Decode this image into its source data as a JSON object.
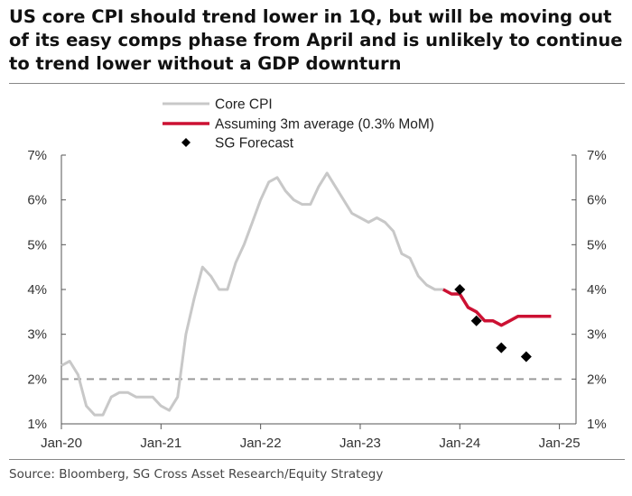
{
  "title_lines": [
    "US core CPI should trend lower in 1Q, but will be moving out",
    "of its easy comps phase from April and is unlikely to continue",
    "to trend lower without a GDP downturn"
  ],
  "source": "Source: Bloomberg, SG Cross Asset Research/Equity Strategy",
  "colors": {
    "core_cpi": "#c8c8c8",
    "assuming": "#cc1133",
    "forecast": "#000000",
    "reference_line": "#9a9a9a",
    "axis": "#555555"
  },
  "chart_data": {
    "type": "line",
    "title": "",
    "xlabel": "",
    "ylabel": "",
    "xlim": [
      "2020-01",
      "2025-03"
    ],
    "ylim": [
      1,
      7
    ],
    "x_ticks": [
      "Jan-20",
      "Jan-21",
      "Jan-22",
      "Jan-23",
      "Jan-24",
      "Jan-25"
    ],
    "y_ticks_left": [
      "1%",
      "2%",
      "3%",
      "4%",
      "5%",
      "6%",
      "7%"
    ],
    "y_ticks_right": [
      "1%",
      "2%",
      "3%",
      "4%",
      "5%",
      "6%",
      "7%"
    ],
    "grid": false,
    "legend_position": "top-left",
    "reference_line": {
      "y": 2,
      "style": "dashed"
    },
    "series": [
      {
        "name": "Core CPI",
        "kind": "line",
        "x": [
          "2020-01",
          "2020-02",
          "2020-03",
          "2020-04",
          "2020-05",
          "2020-06",
          "2020-07",
          "2020-08",
          "2020-09",
          "2020-10",
          "2020-11",
          "2020-12",
          "2021-01",
          "2021-02",
          "2021-03",
          "2021-04",
          "2021-05",
          "2021-06",
          "2021-07",
          "2021-08",
          "2021-09",
          "2021-10",
          "2021-11",
          "2021-12",
          "2022-01",
          "2022-02",
          "2022-03",
          "2022-04",
          "2022-05",
          "2022-06",
          "2022-07",
          "2022-08",
          "2022-09",
          "2022-10",
          "2022-11",
          "2022-12",
          "2023-01",
          "2023-02",
          "2023-03",
          "2023-04",
          "2023-05",
          "2023-06",
          "2023-07",
          "2023-08",
          "2023-09",
          "2023-10",
          "2023-11",
          "2023-12"
        ],
        "values": [
          2.3,
          2.4,
          2.1,
          1.4,
          1.2,
          1.2,
          1.6,
          1.7,
          1.7,
          1.6,
          1.6,
          1.6,
          1.4,
          1.3,
          1.6,
          3.0,
          3.8,
          4.5,
          4.3,
          4.0,
          4.0,
          4.6,
          5.0,
          5.5,
          6.0,
          6.4,
          6.5,
          6.2,
          6.0,
          5.9,
          5.9,
          6.3,
          6.6,
          6.3,
          6.0,
          5.7,
          5.6,
          5.5,
          5.6,
          5.5,
          5.3,
          4.8,
          4.7,
          4.3,
          4.1,
          4.0,
          4.0,
          3.9
        ]
      },
      {
        "name": "Assuming 3m average (0.3% MoM)",
        "kind": "line",
        "x": [
          "2023-11",
          "2023-12",
          "2024-01",
          "2024-02",
          "2024-03",
          "2024-04",
          "2024-05",
          "2024-06",
          "2024-07",
          "2024-08",
          "2024-09",
          "2024-10",
          "2024-11",
          "2024-12"
        ],
        "values": [
          4.0,
          3.9,
          3.9,
          3.6,
          3.5,
          3.3,
          3.3,
          3.2,
          3.3,
          3.4,
          3.4,
          3.4,
          3.4,
          3.4
        ]
      },
      {
        "name": "SG Forecast",
        "kind": "scatter",
        "x": [
          "2024-01",
          "2024-03",
          "2024-06",
          "2024-09"
        ],
        "values": [
          4.0,
          3.3,
          2.7,
          2.5
        ]
      }
    ]
  }
}
